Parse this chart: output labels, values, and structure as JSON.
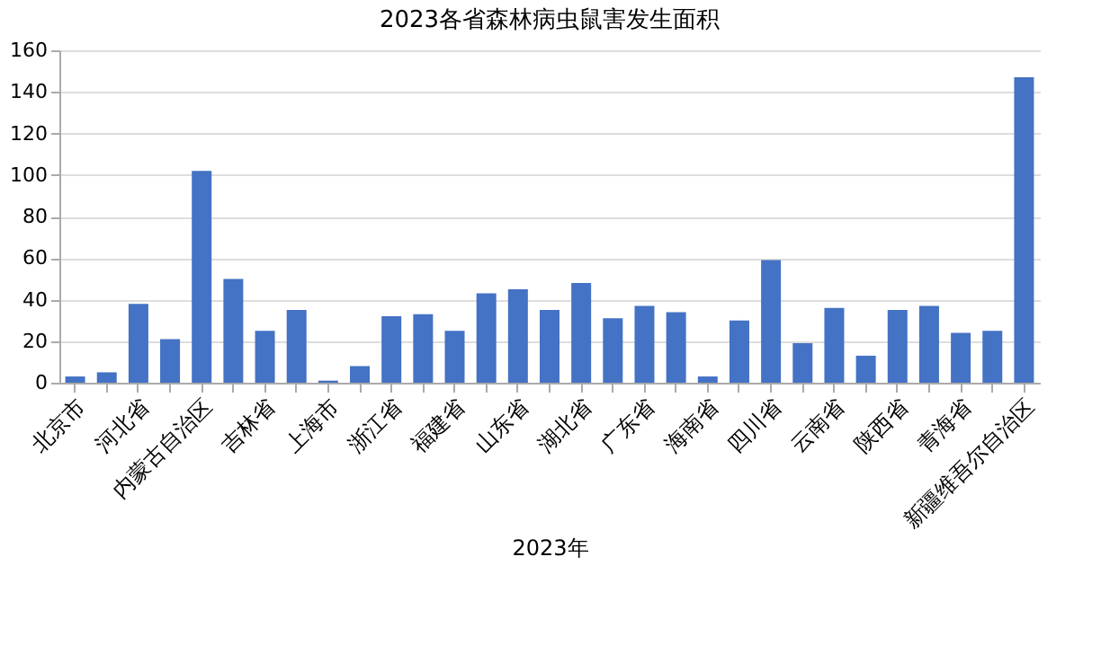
{
  "chart_data": {
    "type": "bar",
    "title": "2023各省森林病虫鼠害发生面积",
    "xlabel": "2023年",
    "categories": [
      "北京市",
      null,
      "河北省",
      null,
      "内蒙古自治区",
      null,
      "吉林省",
      null,
      "上海市",
      null,
      "浙江省",
      null,
      "福建省",
      null,
      "山东省",
      null,
      "湖北省",
      null,
      "广东省",
      null,
      "海南省",
      null,
      "四川省",
      null,
      "云南省",
      null,
      "陕西省",
      null,
      "青海省",
      null,
      "新疆维吾尔自治区"
    ],
    "values": [
      3,
      5,
      38,
      21,
      102,
      50,
      25,
      35,
      1,
      8,
      32,
      33,
      25,
      43,
      45,
      35,
      48,
      31,
      37,
      34,
      3,
      30,
      59,
      19,
      36,
      13,
      35,
      37,
      24,
      25,
      147
    ],
    "color": "#4472c4",
    "ylim": [
      0,
      160
    ],
    "yticks": [
      0,
      20,
      40,
      60,
      80,
      100,
      120,
      140,
      160
    ],
    "grid": "y"
  }
}
